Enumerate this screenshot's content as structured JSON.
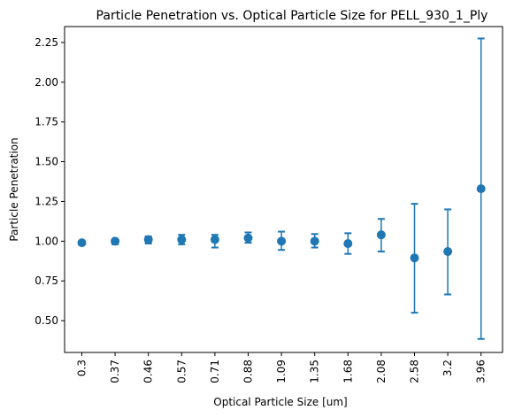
{
  "chart_data": {
    "type": "scatter",
    "title": "Particle Penetration vs. Optical Particle Size for PELL_930_1_Ply",
    "xlabel": "Optical Particle Size [um]",
    "ylabel": "Particle Penetration",
    "categories": [
      "0.3",
      "0.37",
      "0.46",
      "0.57",
      "0.71",
      "0.88",
      "1.09",
      "1.35",
      "1.68",
      "2.08",
      "2.58",
      "3.2",
      "3.96"
    ],
    "values": [
      0.99,
      1.0,
      1.01,
      1.01,
      1.01,
      1.02,
      1.0,
      1.0,
      0.985,
      1.04,
      0.895,
      0.935,
      1.33
    ],
    "error_low": [
      0.98,
      0.98,
      0.985,
      0.98,
      0.96,
      0.99,
      0.945,
      0.96,
      0.92,
      0.935,
      0.55,
      0.665,
      0.385
    ],
    "error_high": [
      1.0,
      1.01,
      1.03,
      1.04,
      1.04,
      1.055,
      1.06,
      1.045,
      1.05,
      1.14,
      1.235,
      1.2,
      2.275
    ],
    "yticks": [
      "0.50",
      "0.75",
      "1.00",
      "1.25",
      "1.50",
      "1.75",
      "2.00",
      "2.25"
    ],
    "ylim": [
      0.3,
      2.35
    ],
    "grid": false,
    "color": "#1f77b4"
  }
}
